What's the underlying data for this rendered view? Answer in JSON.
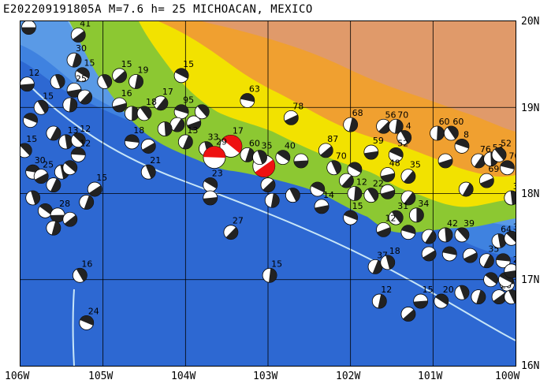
{
  "title": "E202209191805A M=7.6 h= 25 MICHOACAN, MEXICO",
  "lat_labels": [
    "20N",
    "19N",
    "18N",
    "17N",
    "16N"
  ],
  "lon_labels": [
    "106W",
    "105W",
    "104W",
    "103W",
    "102W",
    "101W",
    "100W"
  ],
  "map_extent": {
    "lon_min": -106,
    "lon_max": -100,
    "lat_min": 16,
    "lat_max": 20
  },
  "colors": {
    "deep_ocean": "#2d68d2",
    "ocean": "#3f82e0",
    "shelf": "#6aa8ec",
    "shallow": "#a9d3f5",
    "lowland": "#8cc832",
    "hills": "#f2e200",
    "mountains": "#f0a030",
    "highlands": "#e09a6a",
    "mechanism_main": "#ee1111",
    "mechanism_other": "#222222",
    "trench_line": "#c8e6f8"
  },
  "events": [
    {
      "lon": -105.9,
      "lat": 19.93,
      "depth": "",
      "main": false
    },
    {
      "lon": -105.3,
      "lat": 19.84,
      "depth": "41",
      "main": false
    },
    {
      "lon": -105.35,
      "lat": 19.55,
      "depth": "30",
      "main": false
    },
    {
      "lon": -105.55,
      "lat": 19.3,
      "depth": "",
      "main": false
    },
    {
      "lon": -105.25,
      "lat": 19.38,
      "depth": "15",
      "main": false
    },
    {
      "lon": -105.92,
      "lat": 19.27,
      "depth": "12",
      "main": false
    },
    {
      "lon": -104.8,
      "lat": 19.37,
      "depth": "15",
      "main": false
    },
    {
      "lon": -104.6,
      "lat": 19.3,
      "depth": "19",
      "main": false
    },
    {
      "lon": -104.98,
      "lat": 19.3,
      "depth": "",
      "main": false
    },
    {
      "lon": -104.05,
      "lat": 19.37,
      "depth": "15",
      "main": false
    },
    {
      "lon": -105.35,
      "lat": 19.2,
      "depth": "25",
      "main": false
    },
    {
      "lon": -105.22,
      "lat": 19.12,
      "depth": "",
      "main": false
    },
    {
      "lon": -105.4,
      "lat": 19.03,
      "depth": "",
      "main": false
    },
    {
      "lon": -105.75,
      "lat": 19.0,
      "depth": "15",
      "main": false
    },
    {
      "lon": -105.88,
      "lat": 18.85,
      "depth": "",
      "main": false
    },
    {
      "lon": -104.8,
      "lat": 19.03,
      "depth": "16",
      "main": false
    },
    {
      "lon": -104.3,
      "lat": 19.05,
      "depth": "17",
      "main": false
    },
    {
      "lon": -104.65,
      "lat": 18.93,
      "depth": "",
      "main": false
    },
    {
      "lon": -104.5,
      "lat": 18.93,
      "depth": "18",
      "main": false
    },
    {
      "lon": -104.05,
      "lat": 18.95,
      "depth": "95",
      "main": false
    },
    {
      "lon": -103.9,
      "lat": 18.82,
      "depth": "",
      "main": false
    },
    {
      "lon": -104.1,
      "lat": 18.8,
      "depth": "",
      "main": false
    },
    {
      "lon": -104.25,
      "lat": 18.75,
      "depth": "",
      "main": false
    },
    {
      "lon": -103.8,
      "lat": 18.95,
      "depth": "",
      "main": false
    },
    {
      "lon": -103.25,
      "lat": 19.08,
      "depth": "63",
      "main": false
    },
    {
      "lon": -102.72,
      "lat": 18.88,
      "depth": "78",
      "main": false
    },
    {
      "lon": -105.6,
      "lat": 18.7,
      "depth": "",
      "main": false
    },
    {
      "lon": -105.45,
      "lat": 18.6,
      "depth": "13",
      "main": false
    },
    {
      "lon": -105.3,
      "lat": 18.62,
      "depth": "12",
      "main": false
    },
    {
      "lon": -104.65,
      "lat": 18.6,
      "depth": "18",
      "main": false
    },
    {
      "lon": -104.45,
      "lat": 18.55,
      "depth": "",
      "main": false
    },
    {
      "lon": -104.0,
      "lat": 18.6,
      "depth": "13",
      "main": false
    },
    {
      "lon": -103.75,
      "lat": 18.52,
      "depth": "33",
      "main": false
    },
    {
      "lon": -103.45,
      "lat": 18.55,
      "depth": "17",
      "main": true
    },
    {
      "lon": -103.65,
      "lat": 18.42,
      "depth": "29",
      "main": true
    },
    {
      "lon": -103.05,
      "lat": 18.32,
      "depth": "",
      "main": true
    },
    {
      "lon": -103.25,
      "lat": 18.45,
      "depth": "60",
      "main": false
    },
    {
      "lon": -103.1,
      "lat": 18.42,
      "depth": "35",
      "main": false
    },
    {
      "lon": -102.82,
      "lat": 18.42,
      "depth": "40",
      "main": false
    },
    {
      "lon": -102.6,
      "lat": 18.38,
      "depth": "",
      "main": false
    },
    {
      "lon": -102.3,
      "lat": 18.5,
      "depth": "87",
      "main": false
    },
    {
      "lon": -102.0,
      "lat": 18.8,
      "depth": "68",
      "main": false
    },
    {
      "lon": -102.2,
      "lat": 18.3,
      "depth": "70",
      "main": false
    },
    {
      "lon": -101.95,
      "lat": 18.28,
      "depth": "",
      "main": false
    },
    {
      "lon": -101.75,
      "lat": 18.48,
      "depth": "59",
      "main": false
    },
    {
      "lon": -101.6,
      "lat": 18.78,
      "depth": "56",
      "main": false
    },
    {
      "lon": -101.45,
      "lat": 18.78,
      "depth": "70",
      "main": false
    },
    {
      "lon": -101.35,
      "lat": 18.65,
      "depth": "4",
      "main": false
    },
    {
      "lon": -101.45,
      "lat": 18.45,
      "depth": "52",
      "main": false
    },
    {
      "lon": -101.55,
      "lat": 18.22,
      "depth": "48",
      "main": false
    },
    {
      "lon": -101.3,
      "lat": 18.2,
      "depth": "35",
      "main": false
    },
    {
      "lon": -100.95,
      "lat": 18.7,
      "depth": "60",
      "main": false
    },
    {
      "lon": -100.78,
      "lat": 18.7,
      "depth": "60",
      "main": false
    },
    {
      "lon": -100.65,
      "lat": 18.55,
      "depth": "8",
      "main": false
    },
    {
      "lon": -100.85,
      "lat": 18.38,
      "depth": "",
      "main": false
    },
    {
      "lon": -100.45,
      "lat": 18.38,
      "depth": "76",
      "main": false
    },
    {
      "lon": -100.3,
      "lat": 18.4,
      "depth": "53",
      "main": false
    },
    {
      "lon": -100.2,
      "lat": 18.45,
      "depth": "52",
      "main": false
    },
    {
      "lon": -100.1,
      "lat": 18.3,
      "depth": "70",
      "main": false
    },
    {
      "lon": -100.35,
      "lat": 18.15,
      "depth": "69",
      "main": false
    },
    {
      "lon": -100.6,
      "lat": 18.05,
      "depth": "",
      "main": false
    },
    {
      "lon": -100.05,
      "lat": 17.95,
      "depth": "36",
      "main": false
    },
    {
      "lon": -105.95,
      "lat": 18.5,
      "depth": "15",
      "main": false
    },
    {
      "lon": -105.85,
      "lat": 18.25,
      "depth": "30",
      "main": false
    },
    {
      "lon": -105.75,
      "lat": 18.2,
      "depth": "25",
      "main": false
    },
    {
      "lon": -105.6,
      "lat": 18.1,
      "depth": "",
      "main": false
    },
    {
      "lon": -105.5,
      "lat": 18.25,
      "depth": "",
      "main": false
    },
    {
      "lon": -105.4,
      "lat": 18.3,
      "depth": "",
      "main": false
    },
    {
      "lon": -105.3,
      "lat": 18.45,
      "depth": "12",
      "main": false
    },
    {
      "lon": -105.1,
      "lat": 18.05,
      "depth": "15",
      "main": false
    },
    {
      "lon": -105.2,
      "lat": 17.9,
      "depth": "",
      "main": false
    },
    {
      "lon": -105.85,
      "lat": 17.95,
      "depth": "",
      "main": false
    },
    {
      "lon": -105.7,
      "lat": 17.8,
      "depth": "",
      "main": false
    },
    {
      "lon": -105.55,
      "lat": 17.75,
      "depth": "28",
      "main": false
    },
    {
      "lon": -105.4,
      "lat": 17.7,
      "depth": "",
      "main": false
    },
    {
      "lon": -105.6,
      "lat": 17.6,
      "depth": "",
      "main": false
    },
    {
      "lon": -104.45,
      "lat": 18.25,
      "depth": "21",
      "main": false
    },
    {
      "lon": -103.7,
      "lat": 18.1,
      "depth": "23",
      "main": false
    },
    {
      "lon": -103.7,
      "lat": 17.95,
      "depth": "",
      "main": false
    },
    {
      "lon": -103.0,
      "lat": 18.1,
      "depth": "",
      "main": false
    },
    {
      "lon": -102.95,
      "lat": 17.92,
      "depth": "",
      "main": false
    },
    {
      "lon": -102.7,
      "lat": 17.98,
      "depth": "",
      "main": false
    },
    {
      "lon": -102.4,
      "lat": 18.05,
      "depth": "",
      "main": false
    },
    {
      "lon": -102.35,
      "lat": 17.85,
      "depth": "14",
      "main": false
    },
    {
      "lon": -102.05,
      "lat": 18.15,
      "depth": "",
      "main": false
    },
    {
      "lon": -101.95,
      "lat": 18.0,
      "depth": "12",
      "main": false
    },
    {
      "lon": -101.75,
      "lat": 17.98,
      "depth": "22",
      "main": false
    },
    {
      "lon": -102.0,
      "lat": 17.72,
      "depth": "15",
      "main": false
    },
    {
      "lon": -101.55,
      "lat": 18.02,
      "depth": "",
      "main": false
    },
    {
      "lon": -101.3,
      "lat": 17.95,
      "depth": "",
      "main": false
    },
    {
      "lon": -101.2,
      "lat": 17.75,
      "depth": "34",
      "main": false
    },
    {
      "lon": -101.45,
      "lat": 17.72,
      "depth": "31",
      "main": false
    },
    {
      "lon": -101.3,
      "lat": 17.55,
      "depth": "",
      "main": false
    },
    {
      "lon": -101.6,
      "lat": 17.58,
      "depth": "12",
      "main": false
    },
    {
      "lon": -101.05,
      "lat": 17.5,
      "depth": "",
      "main": false
    },
    {
      "lon": -100.85,
      "lat": 17.52,
      "depth": "42",
      "main": false
    },
    {
      "lon": -100.65,
      "lat": 17.52,
      "depth": "39",
      "main": false
    },
    {
      "lon": -100.8,
      "lat": 17.3,
      "depth": "",
      "main": false
    },
    {
      "lon": -100.55,
      "lat": 17.28,
      "depth": "",
      "main": false
    },
    {
      "lon": -100.35,
      "lat": 17.22,
      "depth": "35",
      "main": false
    },
    {
      "lon": -100.2,
      "lat": 17.45,
      "depth": "64",
      "main": false
    },
    {
      "lon": -100.05,
      "lat": 17.48,
      "depth": "36",
      "main": false
    },
    {
      "lon": -100.15,
      "lat": 17.22,
      "depth": "",
      "main": false
    },
    {
      "lon": -101.05,
      "lat": 17.3,
      "depth": "",
      "main": false
    },
    {
      "lon": -101.7,
      "lat": 17.15,
      "depth": "37",
      "main": false
    },
    {
      "lon": -101.55,
      "lat": 17.2,
      "depth": "18",
      "main": false
    },
    {
      "lon": -100.3,
      "lat": 17.0,
      "depth": "",
      "main": false
    },
    {
      "lon": -100.1,
      "lat": 16.95,
      "depth": "",
      "main": false
    },
    {
      "lon": -100.2,
      "lat": 16.8,
      "depth": "20",
      "main": false
    },
    {
      "lon": -100.45,
      "lat": 16.8,
      "depth": "",
      "main": false
    },
    {
      "lon": -100.65,
      "lat": 16.85,
      "depth": "",
      "main": false
    },
    {
      "lon": -100.9,
      "lat": 16.75,
      "depth": "20",
      "main": false
    },
    {
      "lon": -101.15,
      "lat": 16.75,
      "depth": "15",
      "main": false
    },
    {
      "lon": -101.3,
      "lat": 16.6,
      "depth": "",
      "main": false
    },
    {
      "lon": -101.65,
      "lat": 16.75,
      "depth": "12",
      "main": false
    },
    {
      "lon": -100.05,
      "lat": 16.8,
      "depth": "",
      "main": false
    },
    {
      "lon": -100.12,
      "lat": 17.0,
      "depth": "28",
      "main": false
    },
    {
      "lon": -100.05,
      "lat": 17.1,
      "depth": "20",
      "main": false
    },
    {
      "lon": -103.45,
      "lat": 17.55,
      "depth": "27",
      "main": false
    },
    {
      "lon": -102.98,
      "lat": 17.05,
      "depth": "15",
      "main": false
    },
    {
      "lon": -105.28,
      "lat": 17.05,
      "depth": "16",
      "main": false
    },
    {
      "lon": -105.2,
      "lat": 16.5,
      "depth": "24",
      "main": false
    }
  ]
}
